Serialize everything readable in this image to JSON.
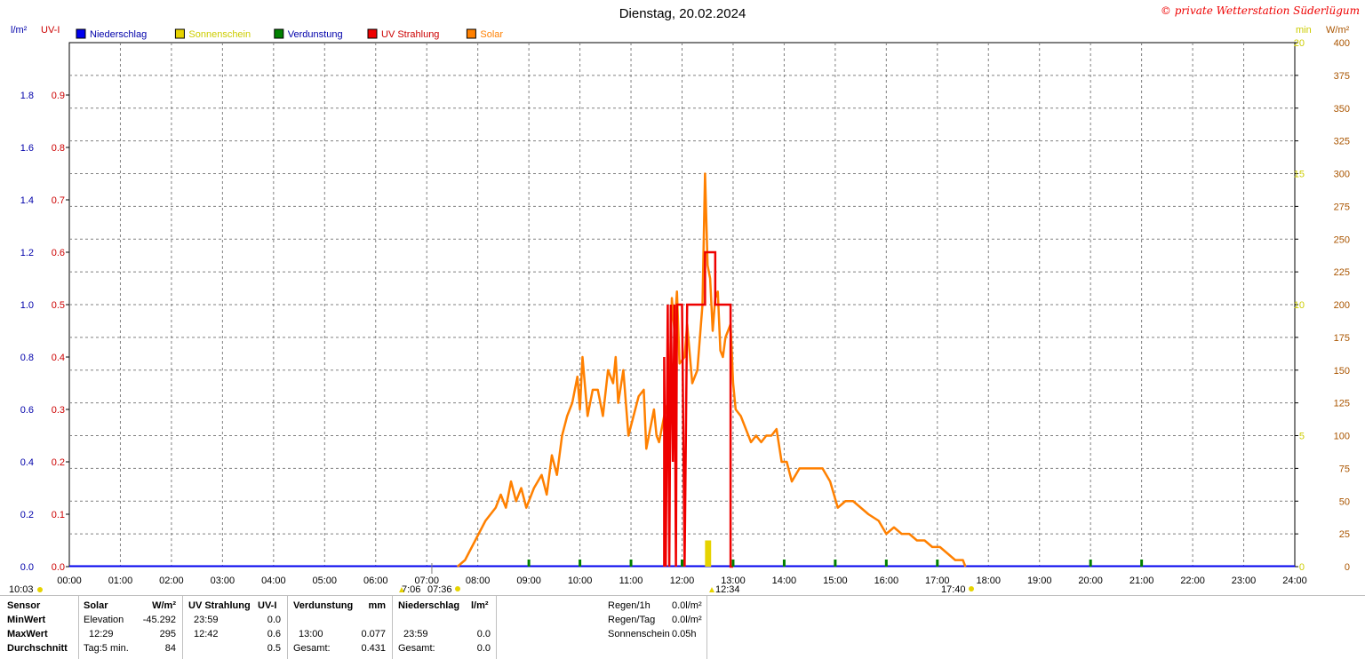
{
  "title": "Dienstag, 20.02.2024",
  "copyright": "© private Wetterstation Süderlügum",
  "colors": {
    "niederschlag": "#0000ee",
    "sonnenschein": "#e6d300",
    "verdunstung": "#008000",
    "uv": "#ee0000",
    "solar": "#ff8000",
    "axis_blue": "#0000aa",
    "axis_red": "#cc0000",
    "axis_yellow": "#cccc00",
    "axis_brown": "#aa5500",
    "grid": "#808080"
  },
  "legend": [
    {
      "label": "Niederschlag",
      "color": "#0000ee",
      "text_color": "#0000aa"
    },
    {
      "label": "Sonnenschein",
      "color": "#e6d300",
      "text_color": "#cccc00"
    },
    {
      "label": "Verdunstung",
      "color": "#008000",
      "text_color": "#0000aa"
    },
    {
      "label": "UV Strahlung",
      "color": "#ee0000",
      "text_color": "#cc0000"
    },
    {
      "label": "Solar",
      "color": "#ff8000",
      "text_color": "#ff8000"
    }
  ],
  "chart_data": {
    "type": "line",
    "title": "Dienstag, 20.02.2024",
    "x_range_hours": [
      0,
      24
    ],
    "x_ticks": [
      "00:00",
      "01:00",
      "02:00",
      "03:00",
      "04:00",
      "05:00",
      "06:00",
      "07:00",
      "08:00",
      "09:00",
      "10:00",
      "11:00",
      "12:00",
      "13:00",
      "14:00",
      "15:00",
      "16:00",
      "17:00",
      "18:00",
      "19:00",
      "20:00",
      "21:00",
      "22:00",
      "23:00",
      "24:00"
    ],
    "grid": true,
    "axes": {
      "niederschlag": {
        "unit": "l/m²",
        "range": [
          0,
          2.0
        ],
        "ticks": [
          "0.0",
          "0.2",
          "0.4",
          "0.6",
          "0.8",
          "1.0",
          "1.2",
          "1.4",
          "1.6",
          "1.8"
        ]
      },
      "uv": {
        "unit": "UV-I",
        "range": [
          0,
          1.0
        ],
        "ticks": [
          "0.0",
          "0.1",
          "0.2",
          "0.3",
          "0.4",
          "0.5",
          "0.6",
          "0.7",
          "0.8",
          "0.9"
        ]
      },
      "sonnenschein": {
        "unit": "min",
        "range": [
          0,
          20
        ],
        "ticks": [
          "0",
          "5",
          "10",
          "15",
          "20"
        ]
      },
      "solar": {
        "unit": "W/m²",
        "range": [
          0,
          400
        ],
        "ticks": [
          "0",
          "25",
          "50",
          "75",
          "100",
          "125",
          "150",
          "175",
          "200",
          "225",
          "250",
          "275",
          "300",
          "325",
          "350",
          "375",
          "400"
        ]
      }
    },
    "series": [
      {
        "name": "Solar",
        "color": "#ff8000",
        "points": [
          [
            7.6,
            0
          ],
          [
            7.75,
            5
          ],
          [
            7.95,
            20
          ],
          [
            8.15,
            35
          ],
          [
            8.35,
            45
          ],
          [
            8.45,
            55
          ],
          [
            8.55,
            45
          ],
          [
            8.65,
            65
          ],
          [
            8.75,
            50
          ],
          [
            8.85,
            60
          ],
          [
            8.95,
            45
          ],
          [
            9.1,
            60
          ],
          [
            9.25,
            70
          ],
          [
            9.35,
            55
          ],
          [
            9.45,
            85
          ],
          [
            9.55,
            70
          ],
          [
            9.65,
            100
          ],
          [
            9.75,
            115
          ],
          [
            9.85,
            125
          ],
          [
            9.95,
            145
          ],
          [
            10.0,
            120
          ],
          [
            10.05,
            160
          ],
          [
            10.15,
            115
          ],
          [
            10.25,
            135
          ],
          [
            10.35,
            135
          ],
          [
            10.45,
            115
          ],
          [
            10.55,
            150
          ],
          [
            10.65,
            140
          ],
          [
            10.7,
            160
          ],
          [
            10.75,
            125
          ],
          [
            10.85,
            150
          ],
          [
            10.95,
            100
          ],
          [
            11.05,
            115
          ],
          [
            11.15,
            130
          ],
          [
            11.25,
            135
          ],
          [
            11.3,
            90
          ],
          [
            11.45,
            120
          ],
          [
            11.5,
            100
          ],
          [
            11.55,
            95
          ],
          [
            11.65,
            115
          ],
          [
            11.75,
            130
          ],
          [
            11.8,
            205
          ],
          [
            11.85,
            180
          ],
          [
            11.9,
            210
          ],
          [
            11.95,
            155
          ],
          [
            12.05,
            160
          ],
          [
            12.1,
            185
          ],
          [
            12.2,
            140
          ],
          [
            12.3,
            150
          ],
          [
            12.35,
            175
          ],
          [
            12.4,
            200
          ],
          [
            12.45,
            300
          ],
          [
            12.5,
            230
          ],
          [
            12.55,
            220
          ],
          [
            12.6,
            180
          ],
          [
            12.65,
            205
          ],
          [
            12.7,
            210
          ],
          [
            12.75,
            165
          ],
          [
            12.8,
            160
          ],
          [
            12.85,
            175
          ],
          [
            12.95,
            185
          ],
          [
            13.0,
            140
          ],
          [
            13.05,
            120
          ],
          [
            13.15,
            115
          ],
          [
            13.25,
            105
          ],
          [
            13.35,
            95
          ],
          [
            13.45,
            100
          ],
          [
            13.55,
            95
          ],
          [
            13.65,
            100
          ],
          [
            13.75,
            100
          ],
          [
            13.85,
            105
          ],
          [
            13.95,
            80
          ],
          [
            14.05,
            80
          ],
          [
            14.15,
            65
          ],
          [
            14.3,
            75
          ],
          [
            14.45,
            75
          ],
          [
            14.6,
            75
          ],
          [
            14.75,
            75
          ],
          [
            14.9,
            65
          ],
          [
            15.05,
            45
          ],
          [
            15.2,
            50
          ],
          [
            15.35,
            50
          ],
          [
            15.5,
            45
          ],
          [
            15.65,
            40
          ],
          [
            15.85,
            35
          ],
          [
            16.0,
            25
          ],
          [
            16.15,
            30
          ],
          [
            16.3,
            25
          ],
          [
            16.45,
            25
          ],
          [
            16.6,
            20
          ],
          [
            16.75,
            20
          ],
          [
            16.9,
            15
          ],
          [
            17.05,
            15
          ],
          [
            17.2,
            10
          ],
          [
            17.35,
            5
          ],
          [
            17.5,
            5
          ],
          [
            17.55,
            0
          ]
        ]
      },
      {
        "name": "UV Strahlung",
        "color": "#ee0000",
        "points": [
          [
            11.65,
            0
          ],
          [
            11.65,
            0.4
          ],
          [
            11.68,
            0
          ],
          [
            11.72,
            0.5
          ],
          [
            11.75,
            0
          ],
          [
            11.78,
            0.5
          ],
          [
            11.82,
            0.2
          ],
          [
            11.85,
            0.5
          ],
          [
            11.88,
            0
          ],
          [
            11.9,
            0.5
          ],
          [
            12.0,
            0.5
          ],
          [
            12.05,
            0
          ],
          [
            12.1,
            0.5
          ],
          [
            12.45,
            0.5
          ],
          [
            12.45,
            0.6
          ],
          [
            12.65,
            0.6
          ],
          [
            12.65,
            0.5
          ],
          [
            12.95,
            0.5
          ],
          [
            12.95,
            0
          ],
          [
            13.0,
            0
          ]
        ]
      },
      {
        "name": "Sonnenschein",
        "color": "#e6d300",
        "bars": [
          [
            12.45,
            1
          ],
          [
            12.5,
            1
          ]
        ]
      },
      {
        "name": "Verdunstung",
        "color": "#008000",
        "markers": [
          9.0,
          10.0,
          11.0,
          12.0,
          13.0,
          14.0,
          15.0,
          16.0,
          17.0,
          20.0,
          21.0
        ]
      },
      {
        "name": "Niederschlag",
        "color": "#0000ee",
        "points": [
          [
            0,
            0
          ],
          [
            24,
            0
          ]
        ]
      }
    ],
    "annotations": {
      "sunrise": "7:06",
      "sunset": "17:40",
      "twilight_start": "07:36",
      "uv_max_time": "12:34",
      "duration": "10:03"
    }
  },
  "table": {
    "headers": {
      "sensor": "Sensor",
      "solar": "Solar",
      "solar_unit": "W/m²",
      "uv": "UV Strahlung",
      "uv_unit": "UV-I",
      "verd": "Verdunstung",
      "verd_unit": "mm",
      "nied": "Niederschlag",
      "nied_unit": "l/m²"
    },
    "rows": [
      {
        "label": "MinWert",
        "solar_time": "Elevation",
        "solar_val": "-45.292",
        "uv_time": "23:59",
        "uv_val": "0.0",
        "verd_time": "",
        "verd_val": "",
        "nied_time": "",
        "nied_val": ""
      },
      {
        "label": "MaxWert",
        "solar_time": "12:29",
        "solar_val": "295",
        "uv_time": "12:42",
        "uv_val": "0.6",
        "verd_time": "13:00",
        "verd_val": "0.077",
        "nied_time": "23:59",
        "nied_val": "0.0"
      },
      {
        "label": "Durchschnitt",
        "solar_time": "Tag:5 min.",
        "solar_val": "84",
        "uv_time": "",
        "uv_val": "0.5",
        "verd_time": "Gesamt:",
        "verd_val": "0.431",
        "nied_time": "Gesamt:",
        "nied_val": "0.0"
      }
    ],
    "extra": [
      {
        "label": "Regen/1h",
        "value": "0.0l/m²"
      },
      {
        "label": "Regen/Tag",
        "value": "0.0l/m²"
      },
      {
        "label": "Sonnenschein",
        "value": "0.05h"
      }
    ]
  }
}
